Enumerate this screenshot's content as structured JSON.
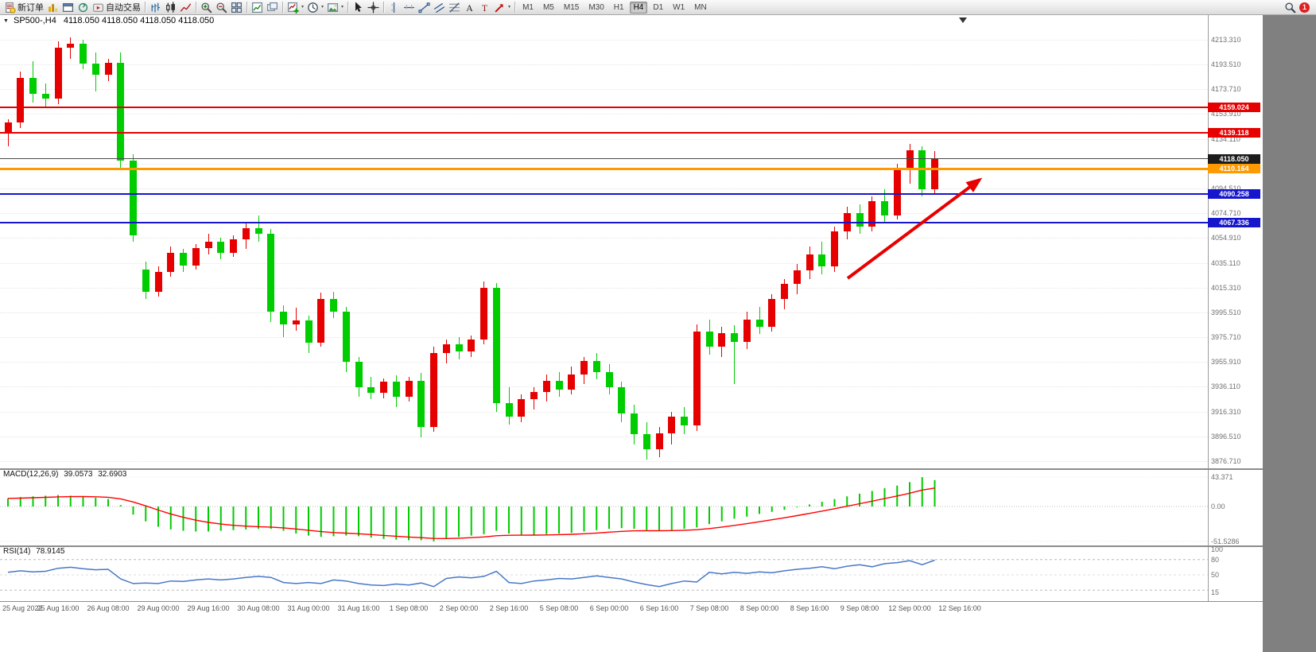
{
  "toolbar": {
    "new_order_label": "新订单",
    "auto_trading_label": "自动交易",
    "timeframes": [
      "M1",
      "M5",
      "M15",
      "M30",
      "H1",
      "H4",
      "D1",
      "W1",
      "MN"
    ],
    "active_timeframe": "H4",
    "notification_badge": "1",
    "button_groups": [
      [
        {
          "name": "new-order-button",
          "icon": "new-order",
          "label": "新订单"
        },
        {
          "name": "market-watch-button",
          "icon": "columns"
        },
        {
          "name": "data-window-button",
          "icon": "window"
        },
        {
          "name": "navigator-button",
          "icon": "cycle"
        },
        {
          "name": "auto-trading-button",
          "icon": "autoplay",
          "label": "自动交易"
        }
      ],
      [
        {
          "name": "bar-chart-button",
          "icon": "bars"
        },
        {
          "name": "candlestick-chart-button",
          "icon": "candles"
        },
        {
          "name": "line-chart-button",
          "icon": "linechart"
        }
      ],
      [
        {
          "name": "zoom-in-button",
          "icon": "zoom-in"
        },
        {
          "name": "zoom-out-button",
          "icon": "zoom-out"
        },
        {
          "name": "tile-windows-button",
          "icon": "tile"
        }
      ],
      [
        {
          "name": "new-chart-button",
          "icon": "chart-plus"
        },
        {
          "name": "profiles-button",
          "icon": "cascade"
        }
      ],
      [
        {
          "name": "indicators-button",
          "icon": "indicators",
          "caret": true
        },
        {
          "name": "periods-button",
          "icon": "clock",
          "caret": true
        },
        {
          "name": "templates-button",
          "icon": "template",
          "caret": true
        }
      ],
      [
        {
          "name": "cursor-button",
          "icon": "cursor"
        },
        {
          "name": "crosshair-button",
          "icon": "crosshair"
        }
      ],
      [
        {
          "name": "vertical-line-button",
          "icon": "vline"
        },
        {
          "name": "horizontal-line-button",
          "icon": "hline"
        },
        {
          "name": "trendline-button",
          "icon": "trendline"
        },
        {
          "name": "equidistant-channel-button",
          "icon": "channel"
        },
        {
          "name": "fibonacci-retracement-button",
          "icon": "fibo"
        },
        {
          "name": "text-button",
          "icon": "text-a"
        },
        {
          "name": "text-label-button",
          "icon": "text-t"
        },
        {
          "name": "arrows-button",
          "icon": "arrow-ne",
          "caret": true
        }
      ]
    ]
  },
  "chart": {
    "symbol_title": "SP500-,H4",
    "ohlc_readout": "4118.050 4118.050 4118.050 4118.050",
    "price_ticks": [
      "4213.310",
      "4193.510",
      "4173.710",
      "4153.910",
      "4134.110",
      "4114.310",
      "4094.510",
      "4074.710",
      "4054.910",
      "4035.110",
      "4015.310",
      "3995.510",
      "3975.710",
      "3955.910",
      "3936.110",
      "3916.310",
      "3896.510",
      "3876.710"
    ],
    "hlines": [
      {
        "price": 4159.024,
        "label": "4159.024",
        "color": "#e60000",
        "badge": "#e60000",
        "width": 2
      },
      {
        "price": 4139.118,
        "label": "4139.118",
        "color": "#e60000",
        "badge": "#e60000",
        "width": 2
      },
      {
        "price": 4118.05,
        "label": "4118.050",
        "color": "#4a4a4a",
        "badge": "#1c1c1c",
        "width": 1
      },
      {
        "price": 4110.164,
        "label": "4110.164",
        "color": "#ff9900",
        "badge": "#ff9900",
        "width": 3
      },
      {
        "price": 4090.258,
        "label": "4090.258",
        "color": "#1616cc",
        "badge": "#1616cc",
        "width": 2
      },
      {
        "price": 4067.336,
        "label": "4067.336",
        "color": "#1616cc",
        "badge": "#1616cc",
        "width": 2
      }
    ],
    "time_labels": [
      "25 Aug 2022",
      "25 Aug 16:00",
      "26 Aug 08:00",
      "29 Aug 00:00",
      "29 Aug 16:00",
      "30 Aug 08:00",
      "31 Aug 00:00",
      "31 Aug 16:00",
      "1 Sep 08:00",
      "2 Sep 00:00",
      "2 Sep 16:00",
      "5 Sep 08:00",
      "6 Sep 00:00",
      "6 Sep 16:00",
      "7 Sep 08:00",
      "8 Sep 00:00",
      "8 Sep 16:00",
      "9 Sep 08:00",
      "12 Sep 00:00",
      "12 Sep 16:00"
    ],
    "candles": [
      [
        4138,
        4150,
        4128,
        4147
      ],
      [
        4147,
        4188,
        4143,
        4183
      ],
      [
        4183,
        4196,
        4163,
        4170
      ],
      [
        4170,
        4178,
        4160,
        4166
      ],
      [
        4166,
        4212,
        4162,
        4207
      ],
      [
        4207,
        4215,
        4198,
        4210
      ],
      [
        4210,
        4213,
        4190,
        4194
      ],
      [
        4194,
        4203,
        4172,
        4185
      ],
      [
        4185,
        4198,
        4180,
        4195
      ],
      [
        4195,
        4203,
        4110,
        4117
      ],
      [
        4117,
        4122,
        4052,
        4057
      ],
      [
        4030,
        4036,
        4006,
        4012
      ],
      [
        4012,
        4032,
        4008,
        4028
      ],
      [
        4028,
        4048,
        4024,
        4043
      ],
      [
        4043,
        4046,
        4028,
        4033
      ],
      [
        4033,
        4050,
        4030,
        4047
      ],
      [
        4047,
        4058,
        4042,
        4052
      ],
      [
        4052,
        4055,
        4038,
        4043
      ],
      [
        4043,
        4057,
        4040,
        4054
      ],
      [
        4054,
        4068,
        4046,
        4063
      ],
      [
        4063,
        4073,
        4052,
        4058
      ],
      [
        4058,
        4062,
        3988,
        3996
      ],
      [
        3996,
        4001,
        3976,
        3986
      ],
      [
        3986,
        3999,
        3981,
        3989
      ],
      [
        3989,
        3993,
        3963,
        3971
      ],
      [
        3971,
        4011,
        3968,
        4006
      ],
      [
        4006,
        4012,
        3991,
        3996
      ],
      [
        3996,
        4000,
        3948,
        3956
      ],
      [
        3956,
        3960,
        3928,
        3936
      ],
      [
        3936,
        3944,
        3926,
        3931
      ],
      [
        3931,
        3943,
        3927,
        3940
      ],
      [
        3940,
        3945,
        3920,
        3928
      ],
      [
        3928,
        3944,
        3924,
        3941
      ],
      [
        3941,
        3947,
        3896,
        3904
      ],
      [
        3904,
        3968,
        3900,
        3963
      ],
      [
        3963,
        3974,
        3955,
        3970
      ],
      [
        3970,
        3976,
        3958,
        3964
      ],
      [
        3964,
        3977,
        3960,
        3974
      ],
      [
        3974,
        4020,
        3970,
        4015
      ],
      [
        4015,
        4019,
        3916,
        3923
      ],
      [
        3923,
        3936,
        3906,
        3912
      ],
      [
        3912,
        3930,
        3908,
        3926
      ],
      [
        3926,
        3936,
        3918,
        3932
      ],
      [
        3932,
        3946,
        3924,
        3941
      ],
      [
        3941,
        3948,
        3928,
        3934
      ],
      [
        3934,
        3952,
        3930,
        3946
      ],
      [
        3946,
        3960,
        3938,
        3957
      ],
      [
        3957,
        3963,
        3942,
        3948
      ],
      [
        3948,
        3954,
        3930,
        3936
      ],
      [
        3936,
        3940,
        3908,
        3915
      ],
      [
        3915,
        3922,
        3890,
        3898
      ],
      [
        3898,
        3908,
        3878,
        3886
      ],
      [
        3886,
        3904,
        3880,
        3899
      ],
      [
        3899,
        3916,
        3890,
        3912
      ],
      [
        3912,
        3920,
        3898,
        3905
      ],
      [
        3905,
        3986,
        3901,
        3980
      ],
      [
        3980,
        3990,
        3962,
        3968
      ],
      [
        3968,
        3984,
        3960,
        3979
      ],
      [
        3979,
        3985,
        3938,
        3972
      ],
      [
        3972,
        3996,
        3966,
        3990
      ],
      [
        3990,
        4000,
        3978,
        3984
      ],
      [
        3984,
        4010,
        3980,
        4006
      ],
      [
        4006,
        4022,
        3998,
        4018
      ],
      [
        4018,
        4034,
        4010,
        4029
      ],
      [
        4029,
        4048,
        4022,
        4042
      ],
      [
        4042,
        4052,
        4026,
        4032
      ],
      [
        4032,
        4064,
        4028,
        4060
      ],
      [
        4060,
        4080,
        4054,
        4075
      ],
      [
        4075,
        4082,
        4058,
        4064
      ],
      [
        4064,
        4088,
        4060,
        4084
      ],
      [
        4084,
        4094,
        4068,
        4073
      ],
      [
        4073,
        4114,
        4070,
        4110
      ],
      [
        4110,
        4130,
        4098,
        4125
      ],
      [
        4125,
        4128,
        4088,
        4094
      ],
      [
        4094,
        4124,
        4090,
        4118.05
      ]
    ]
  },
  "macd": {
    "label": "MACD(12,26,9)",
    "value_main": "39.0573",
    "value_signal": "32.6903",
    "axis_ticks": [
      {
        "v": 43.371,
        "label": "43.371"
      },
      {
        "v": 0,
        "label": "0.00"
      },
      {
        "v": -51.5286,
        "label": "-51.5286"
      }
    ],
    "values": [
      12,
      14,
      15,
      16,
      17,
      16,
      15,
      13,
      11,
      2,
      -12,
      -22,
      -30,
      -34,
      -36,
      -37,
      -37,
      -36,
      -35,
      -34,
      -33,
      -33,
      -36,
      -40,
      -43,
      -45,
      -44,
      -43,
      -44,
      -46,
      -48,
      -49,
      -50,
      -50,
      -51.5,
      -48,
      -45,
      -43,
      -41,
      -36,
      -40,
      -42,
      -42,
      -41,
      -40,
      -39,
      -37,
      -35,
      -33,
      -32,
      -33,
      -35,
      -36,
      -35,
      -33,
      -31,
      -26,
      -22,
      -18,
      -15,
      -11,
      -8,
      -5,
      -1,
      3,
      7,
      11,
      15,
      19,
      23,
      27,
      31,
      36,
      43.37,
      39.06
    ]
  },
  "rsi": {
    "label": "RSI(14)",
    "value": "78.9145",
    "axis_ticks": [
      {
        "v": 100,
        "label": "100"
      },
      {
        "v": 80,
        "label": "80"
      },
      {
        "v": 50,
        "label": "50"
      },
      {
        "v": 15,
        "label": "15"
      }
    ],
    "levels": [
      80,
      50,
      20
    ],
    "values": [
      55,
      58,
      56,
      57,
      63,
      65,
      62,
      60,
      61,
      42,
      33,
      34,
      33,
      38,
      37,
      40,
      42,
      40,
      42,
      45,
      47,
      45,
      35,
      33,
      35,
      33,
      40,
      38,
      33,
      30,
      29,
      32,
      30,
      34,
      27,
      43,
      46,
      44,
      47,
      57,
      35,
      33,
      38,
      40,
      43,
      42,
      45,
      48,
      45,
      42,
      36,
      31,
      27,
      33,
      38,
      36,
      55,
      52,
      55,
      53,
      56,
      54,
      58,
      61,
      63,
      66,
      62,
      67,
      70,
      66,
      72,
      74,
      78,
      70,
      78.91
    ]
  },
  "colors": {
    "up": "#e60000",
    "down": "#00cd00",
    "macd_hist": "#00cc00",
    "macd_signal": "#ff0000",
    "rsi_line": "#4878c8",
    "arrow": "#e80000"
  }
}
